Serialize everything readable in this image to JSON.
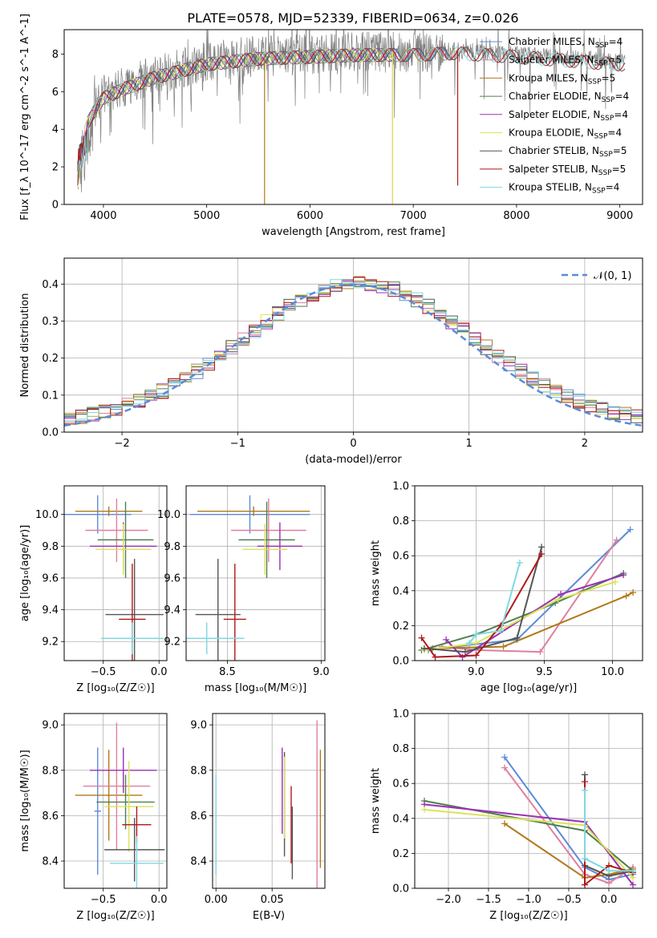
{
  "title": "PLATE=0578, MJD=52339, FIBERID=0634, z=0.026",
  "colors": {
    "Chabrier MILES": "#5b8bd9",
    "Salpeter MILES": "#e07f9f",
    "Kroupa MILES": "#b07a1a",
    "Chabrier ELODIE": "#4f7f4f",
    "Salpeter ELODIE": "#9a30b5",
    "Kroupa ELODIE": "#dbe25a",
    "Chabrier STELIB": "#555555",
    "Salpeter STELIB": "#b01818",
    "Kroupa STELIB": "#7fd8e0",
    "data": "#808080",
    "orange": "#e07a28"
  },
  "legend1": [
    {
      "label": "Chabrier MILES, N",
      "sub": "SSP",
      "tail": "=4",
      "color": "#5b8bd9"
    },
    {
      "label": "Salpeter MILES, N",
      "sub": "SSP",
      "tail": "=5",
      "color": "#e07f9f"
    },
    {
      "label": "Kroupa MILES, N",
      "sub": "SSP",
      "tail": "=5",
      "color": "#b07a1a"
    },
    {
      "label": "Chabrier ELODIE, N",
      "sub": "SSP",
      "tail": "=4",
      "color": "#4f7f4f"
    },
    {
      "label": "Salpeter ELODIE, N",
      "sub": "SSP",
      "tail": "=4",
      "color": "#9a30b5"
    },
    {
      "label": "Kroupa ELODIE, N",
      "sub": "SSP",
      "tail": "=4",
      "color": "#dbe25a"
    },
    {
      "label": "Chabrier STELIB, N",
      "sub": "SSP",
      "tail": "=5",
      "color": "#555555"
    },
    {
      "label": "Salpeter STELIB, N",
      "sub": "SSP",
      "tail": "=5",
      "color": "#b01818"
    },
    {
      "label": "Kroupa STELIB, N",
      "sub": "SSP",
      "tail": "=4",
      "color": "#7fd8e0"
    }
  ],
  "chart_data": [
    {
      "type": "line",
      "id": "spectrum",
      "xlabel": "wavelength [Angstrom, rest frame]",
      "ylabel": "Flux [f_λ 10^-17 erg cm^-2 s^-1 A^-1]",
      "xlim": [
        3620,
        9220
      ],
      "ylim": [
        0,
        9.3
      ],
      "xticks": [
        4000,
        5000,
        6000,
        7000,
        8000,
        9000
      ],
      "yticks": [
        0,
        2,
        4,
        6,
        8
      ],
      "grid": false,
      "legend": "top-right",
      "x_range_data": [
        3750,
        9050
      ],
      "continuum": [
        [
          3750,
          2.5
        ],
        [
          3800,
          4.0
        ],
        [
          3900,
          5.0
        ],
        [
          4000,
          5.8
        ],
        [
          4200,
          6.3
        ],
        [
          4500,
          6.9
        ],
        [
          5000,
          7.6
        ],
        [
          5500,
          7.9
        ],
        [
          6000,
          8.0
        ],
        [
          6500,
          8.1
        ],
        [
          7000,
          8.1
        ],
        [
          7400,
          8.2
        ],
        [
          8000,
          8.0
        ],
        [
          8500,
          7.8
        ],
        [
          9000,
          7.6
        ]
      ],
      "series_drops": [
        {
          "name": "Kroupa MILES",
          "x": 5560,
          "to": 0.0
        },
        {
          "name": "Kroupa MILES",
          "x": 6800,
          "to": 0.0
        },
        {
          "name": "Kroupa ELODIE",
          "x": 6800,
          "to": 0.0
        },
        {
          "name": "Salpeter STELIB",
          "x": 7430,
          "to": 1.0
        }
      ],
      "series_end": {
        "Chabrier MILES": 7400,
        "Salpeter MILES": 7400,
        "Kroupa MILES": 7400,
        "Chabrier ELODIE": 6800,
        "Salpeter ELODIE": 6800,
        "Kroupa ELODIE": 6800,
        "Chabrier STELIB": 9050,
        "Salpeter STELIB": 9050,
        "Kroupa STELIB": 9050
      }
    },
    {
      "type": "line",
      "id": "residuals",
      "xlabel": "(data-model)/error",
      "ylabel": "Normed distribution",
      "xlim": [
        -2.5,
        2.5
      ],
      "ylim": [
        0,
        0.47
      ],
      "xticks": [
        -2,
        -1,
        0,
        1,
        2
      ],
      "yticks": [
        0.0,
        0.1,
        0.2,
        0.3,
        0.4
      ],
      "grid": true,
      "legend": "top-right",
      "legend_label": "𝒩(0, 1)",
      "gaussian": {
        "mean": 0,
        "sigma": 1
      }
    },
    {
      "type": "scatter",
      "id": "age-Z",
      "xlabel": "Z [log₁₀(Z/Z☉)]",
      "ylabel": "age  [log₁₀(age/yr)]",
      "xlim": [
        -0.85,
        0.07
      ],
      "ylim": [
        9.08,
        10.18
      ],
      "xticks": [
        -0.5,
        0.0
      ],
      "yticks": [
        9.2,
        9.4,
        9.6,
        9.8,
        10.0
      ],
      "grid": true,
      "points": [
        {
          "s": "Chabrier MILES",
          "x": -0.55,
          "y": 10.0,
          "xe": 0.3,
          "ye": 0.12
        },
        {
          "s": "Kroupa MILES",
          "x": -0.45,
          "y": 10.02,
          "xe": 0.3,
          "ye": 0.03
        },
        {
          "s": "Salpeter MILES",
          "x": -0.38,
          "y": 9.9,
          "xe": 0.28,
          "ye": 0.2
        },
        {
          "s": "Chabrier ELODIE",
          "x": -0.3,
          "y": 9.84,
          "xe": 0.25,
          "ye": 0.24
        },
        {
          "s": "Salpeter ELODIE",
          "x": -0.32,
          "y": 9.8,
          "xe": 0.3,
          "ye": 0.15
        },
        {
          "s": "Kroupa ELODIE",
          "x": -0.32,
          "y": 9.78,
          "xe": 0.25,
          "ye": 0.16
        },
        {
          "s": "Chabrier STELIB",
          "x": -0.22,
          "y": 9.37,
          "xe": 0.26,
          "ye": 0.35
        },
        {
          "s": "Salpeter STELIB",
          "x": -0.24,
          "y": 9.34,
          "xe": 0.12,
          "ye": 0.35
        },
        {
          "s": "Kroupa STELIB",
          "x": -0.24,
          "y": 9.22,
          "xe": 0.28,
          "ye": 0.1
        }
      ]
    },
    {
      "type": "scatter",
      "id": "age-mass",
      "xlabel": "mass [log₁₀(M/M☉)]",
      "ylabel": "",
      "xlim": [
        8.28,
        9.02
      ],
      "ylim": [
        9.08,
        10.18
      ],
      "xticks": [
        8.5,
        9.0
      ],
      "yticks": [
        9.2,
        9.4,
        9.6,
        9.8,
        10.0
      ],
      "grid": true,
      "points": [
        {
          "s": "Chabrier MILES",
          "x": 8.62,
          "y": 10.0,
          "xe": 0.32,
          "ye": 0.12
        },
        {
          "s": "Kroupa MILES",
          "x": 8.64,
          "y": 10.02,
          "xe": 0.3,
          "ye": 0.03
        },
        {
          "s": "Salpeter MILES",
          "x": 8.72,
          "y": 9.9,
          "xe": 0.2,
          "ye": 0.2
        },
        {
          "s": "Chabrier ELODIE",
          "x": 8.71,
          "y": 9.84,
          "xe": 0.15,
          "ye": 0.24
        },
        {
          "s": "Salpeter ELODIE",
          "x": 8.78,
          "y": 9.8,
          "xe": 0.12,
          "ye": 0.15
        },
        {
          "s": "Kroupa ELODIE",
          "x": 8.7,
          "y": 9.78,
          "xe": 0.12,
          "ye": 0.16
        },
        {
          "s": "Chabrier STELIB",
          "x": 8.45,
          "y": 9.37,
          "xe": 0.12,
          "ye": 0.35
        },
        {
          "s": "Salpeter STELIB",
          "x": 8.54,
          "y": 9.34,
          "xe": 0.06,
          "ye": 0.35
        },
        {
          "s": "Kroupa STELIB",
          "x": 8.39,
          "y": 9.22,
          "xe": 0.2,
          "ye": 0.1
        }
      ]
    },
    {
      "type": "line",
      "id": "mw-age",
      "xlabel": "age  [log₁₀(age/yr)]",
      "ylabel": "mass weight",
      "xlim": [
        8.55,
        10.22
      ],
      "ylim": [
        0,
        1.0
      ],
      "xticks": [
        9.0,
        9.5,
        10.0
      ],
      "yticks": [
        0.0,
        0.2,
        0.4,
        0.6,
        0.8,
        1.0
      ],
      "grid": true,
      "series": [
        {
          "name": "Chabrier MILES",
          "x": [
            8.65,
            8.95,
            9.3,
            10.13
          ],
          "y": [
            0.06,
            0.09,
            0.12,
            0.75
          ]
        },
        {
          "name": "Salpeter MILES",
          "x": [
            8.75,
            9.0,
            9.47,
            10.03
          ],
          "y": [
            0.08,
            0.06,
            0.05,
            0.69
          ]
        },
        {
          "name": "Kroupa MILES",
          "x": [
            8.68,
            9.2,
            10.1,
            10.15
          ],
          "y": [
            0.07,
            0.08,
            0.37,
            0.39
          ]
        },
        {
          "name": "Chabrier ELODIE",
          "x": [
            8.6,
            9.0,
            9.58,
            10.08
          ],
          "y": [
            0.06,
            0.15,
            0.33,
            0.5
          ]
        },
        {
          "name": "Salpeter ELODIE",
          "x": [
            8.78,
            8.9,
            9.62,
            10.08
          ],
          "y": [
            0.12,
            0.02,
            0.38,
            0.49
          ]
        },
        {
          "name": "Kroupa ELODIE",
          "x": [
            8.62,
            9.0,
            9.6,
            10.02
          ],
          "y": [
            0.06,
            0.1,
            0.35,
            0.45
          ]
        },
        {
          "name": "Chabrier STELIB",
          "x": [
            8.62,
            8.92,
            9.3,
            9.48
          ],
          "y": [
            0.07,
            0.05,
            0.13,
            0.65
          ]
        },
        {
          "name": "Salpeter STELIB",
          "x": [
            8.6,
            8.7,
            9.0,
            9.18,
            9.48
          ],
          "y": [
            0.13,
            0.02,
            0.03,
            0.2,
            0.61
          ]
        },
        {
          "name": "Kroupa STELIB",
          "x": [
            8.95,
            9.0,
            9.18,
            9.32
          ],
          "y": [
            0.1,
            0.15,
            0.17,
            0.56
          ]
        }
      ]
    },
    {
      "type": "scatter",
      "id": "mass-Z",
      "xlabel": "Z [log₁₀(Z/Z☉)]",
      "ylabel": "mass [log₁₀(M/M☉)]",
      "xlim": [
        -0.85,
        0.07
      ],
      "ylim": [
        8.28,
        9.05
      ],
      "xticks": [
        -0.5,
        0.0
      ],
      "yticks": [
        8.4,
        8.6,
        8.8,
        9.0
      ],
      "grid": true,
      "points": [
        {
          "s": "Chabrier MILES",
          "x": -0.55,
          "y": 8.62,
          "xe": 0.03,
          "ye": 0.28
        },
        {
          "s": "Kroupa MILES",
          "x": -0.45,
          "y": 8.69,
          "xe": 0.3,
          "ye": 0.2
        },
        {
          "s": "Salpeter MILES",
          "x": -0.38,
          "y": 8.73,
          "xe": 0.3,
          "ye": 0.28
        },
        {
          "s": "Chabrier ELODIE",
          "x": -0.3,
          "y": 8.66,
          "xe": 0.26,
          "ye": 0.12
        },
        {
          "s": "Salpeter ELODIE",
          "x": -0.32,
          "y": 8.8,
          "xe": 0.3,
          "ye": 0.1
        },
        {
          "s": "Kroupa ELODIE",
          "x": -0.27,
          "y": 8.64,
          "xe": 0.22,
          "ye": 0.2
        },
        {
          "s": "Chabrier STELIB",
          "x": -0.22,
          "y": 8.45,
          "xe": 0.27,
          "ye": 0.14
        },
        {
          "s": "Salpeter STELIB",
          "x": -0.2,
          "y": 8.56,
          "xe": 0.13,
          "ye": 0.08
        },
        {
          "s": "Kroupa STELIB",
          "x": -0.2,
          "y": 8.39,
          "xe": 0.24,
          "ye": 0.12
        }
      ]
    },
    {
      "type": "scatter",
      "id": "mass-EBV",
      "xlabel": "E(B-V)",
      "ylabel": "",
      "xlim": [
        -0.003,
        0.097
      ],
      "ylim": [
        8.28,
        9.05
      ],
      "xticks": [
        0.0,
        0.05
      ],
      "yticks": [
        8.4,
        8.6,
        8.8,
        9.0
      ],
      "grid": true,
      "points": [
        {
          "s": "Kroupa STELIB",
          "x": 0.0,
          "y": 8.56,
          "xe": 0,
          "ye": 0.22
        },
        {
          "s": "Salpeter ELODIE",
          "x": 0.059,
          "y": 8.71,
          "xe": 0,
          "ye": 0.19
        },
        {
          "s": "Chabrier STELIB",
          "x": 0.061,
          "y": 8.65,
          "xe": 0,
          "ye": 0.23
        },
        {
          "s": "Kroupa ELODIE",
          "x": 0.061,
          "y": 8.68,
          "xe": 0,
          "ye": 0.18
        },
        {
          "s": "Salpeter STELIB",
          "x": 0.067,
          "y": 8.56,
          "xe": 0,
          "ye": 0.17
        },
        {
          "s": "Chabrier STELIB",
          "x": 0.068,
          "y": 8.48,
          "xe": 0,
          "ye": 0.16
        },
        {
          "s": "Salpeter MILES",
          "x": 0.09,
          "y": 8.63,
          "xe": 0,
          "ye": 0.39
        },
        {
          "s": "Kroupa MILES",
          "x": 0.093,
          "y": 8.63,
          "xe": 0,
          "ye": 0.26
        }
      ]
    },
    {
      "type": "line",
      "id": "mw-Z",
      "xlabel": "Z [log₁₀(Z/Z☉)]",
      "ylabel": "mass weight",
      "xlim": [
        -2.42,
        0.42
      ],
      "ylim": [
        0,
        1.0
      ],
      "xticks": [
        -2.0,
        -1.5,
        -1.0,
        -0.5,
        0.0
      ],
      "yticks": [
        0.0,
        0.2,
        0.4,
        0.6,
        0.8,
        1.0
      ],
      "grid": true,
      "series": [
        {
          "name": "Chabrier MILES",
          "x": [
            -1.3,
            -0.3,
            0.0,
            0.3
          ],
          "y": [
            0.75,
            0.12,
            0.05,
            0.08
          ]
        },
        {
          "name": "Salpeter MILES",
          "x": [
            -1.3,
            -0.3,
            0.0,
            0.3
          ],
          "y": [
            0.69,
            0.08,
            0.03,
            0.12
          ]
        },
        {
          "name": "Kroupa MILES",
          "x": [
            -1.3,
            -0.3,
            0.0,
            0.3
          ],
          "y": [
            0.37,
            0.06,
            0.08,
            0.11
          ]
        },
        {
          "name": "Chabrier ELODIE",
          "x": [
            -2.3,
            -0.3,
            0.3
          ],
          "y": [
            0.5,
            0.33,
            0.1
          ]
        },
        {
          "name": "Salpeter ELODIE",
          "x": [
            -2.3,
            -0.3,
            0.3
          ],
          "y": [
            0.48,
            0.38,
            0.02
          ]
        },
        {
          "name": "Kroupa ELODIE",
          "x": [
            -2.3,
            -0.3,
            0.3
          ],
          "y": [
            0.45,
            0.36,
            0.06
          ]
        },
        {
          "name": "Chabrier STELIB",
          "x": [
            -0.3,
            -0.3,
            0.0,
            0.3
          ],
          "y": [
            0.65,
            0.13,
            0.07,
            0.1
          ]
        },
        {
          "name": "Salpeter STELIB",
          "x": [
            -0.3,
            -0.3,
            0.0,
            0.3
          ],
          "y": [
            0.61,
            0.02,
            0.13,
            0.09
          ]
        },
        {
          "name": "Kroupa STELIB",
          "x": [
            -0.3,
            -0.3,
            0.0,
            0.3
          ],
          "y": [
            0.56,
            0.17,
            0.1,
            0.1
          ]
        }
      ]
    }
  ]
}
